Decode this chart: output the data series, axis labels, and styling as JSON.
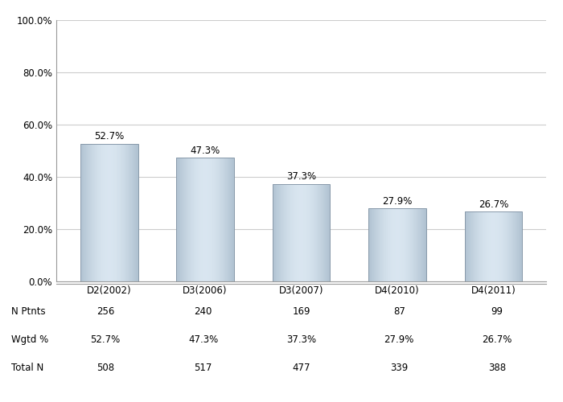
{
  "categories": [
    "D2(2002)",
    "D3(2006)",
    "D3(2007)",
    "D4(2010)",
    "D4(2011)"
  ],
  "values": [
    52.7,
    47.3,
    37.3,
    27.9,
    26.7
  ],
  "value_labels": [
    "52.7%",
    "47.3%",
    "37.3%",
    "27.9%",
    "26.7%"
  ],
  "n_ptnts": [
    256,
    240,
    169,
    87,
    99
  ],
  "wgtd_pct": [
    "52.7%",
    "47.3%",
    "37.3%",
    "27.9%",
    "26.7%"
  ],
  "total_n": [
    508,
    517,
    477,
    339,
    388
  ],
  "ylim": [
    0,
    100
  ],
  "yticks": [
    0,
    20,
    40,
    60,
    80,
    100
  ],
  "ytick_labels": [
    "0.0%",
    "20.0%",
    "40.0%",
    "60.0%",
    "80.0%",
    "100.0%"
  ],
  "background_color": "#ffffff",
  "grid_color": "#cccccc",
  "table_row_labels": [
    "N Ptnts",
    "Wgtd %",
    "Total N"
  ],
  "tick_fontsize": 8.5,
  "table_fontsize": 8.5,
  "bar_label_fontsize": 8.5
}
